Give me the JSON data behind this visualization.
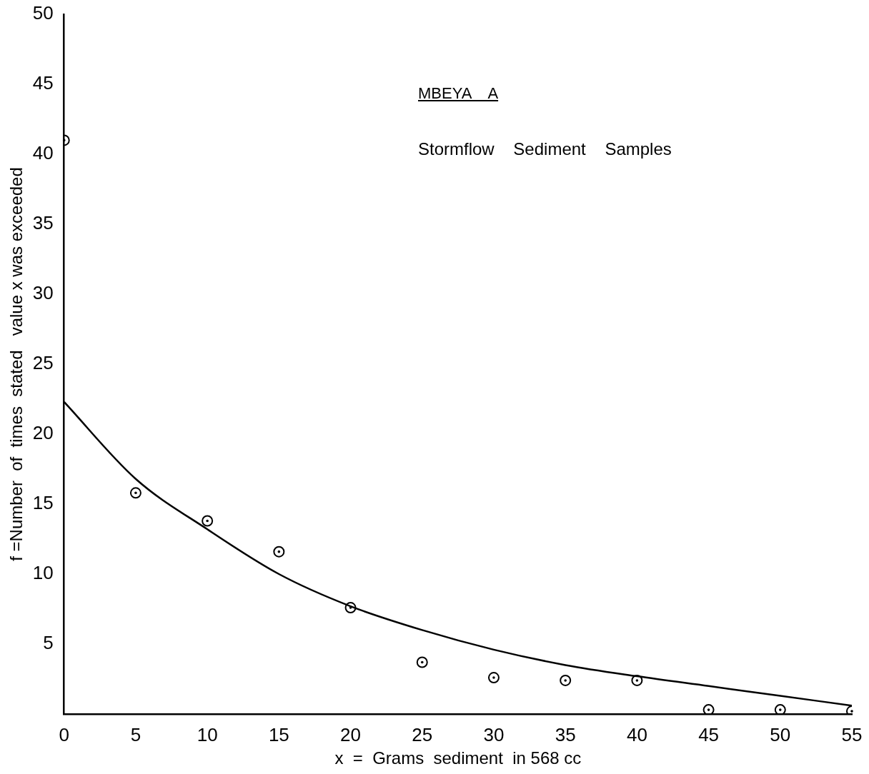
{
  "chart_data": {
    "type": "scatter",
    "title": "MBEYA    A",
    "subtitle": "Stormflow    Sediment    Samples",
    "xlabel": "x  =  Grams  sediment  in 568 cc",
    "ylabel": "f =Number  of  times  stated   value x was exceeded",
    "x": [
      0,
      5,
      10,
      15,
      20,
      25,
      30,
      35,
      40,
      45,
      50,
      55
    ],
    "series": [
      {
        "type": "scatter",
        "color": "#000000",
        "marker": "circle",
        "values": [
          41.0,
          15.8,
          13.8,
          11.6,
          7.6,
          3.7,
          2.6,
          2.4,
          2.4,
          0.3,
          0.3,
          0.2
        ]
      },
      {
        "type": "line",
        "color": "#000000",
        "marker": "none",
        "line_style": "solid",
        "values": [
          22.3,
          16.8,
          13.2,
          10.0,
          7.7,
          6.0,
          4.6,
          3.5,
          2.7,
          2.0,
          1.3,
          0.6
        ]
      }
    ],
    "xlim": [
      0,
      55
    ],
    "xticks": [
      0,
      5,
      10,
      15,
      20,
      25,
      30,
      35,
      40,
      45,
      50,
      55
    ],
    "ylim": [
      0,
      50
    ],
    "yticks": [
      5,
      10,
      15,
      20,
      25,
      30,
      35,
      40,
      45,
      50
    ],
    "grid": false,
    "legend": false
  }
}
